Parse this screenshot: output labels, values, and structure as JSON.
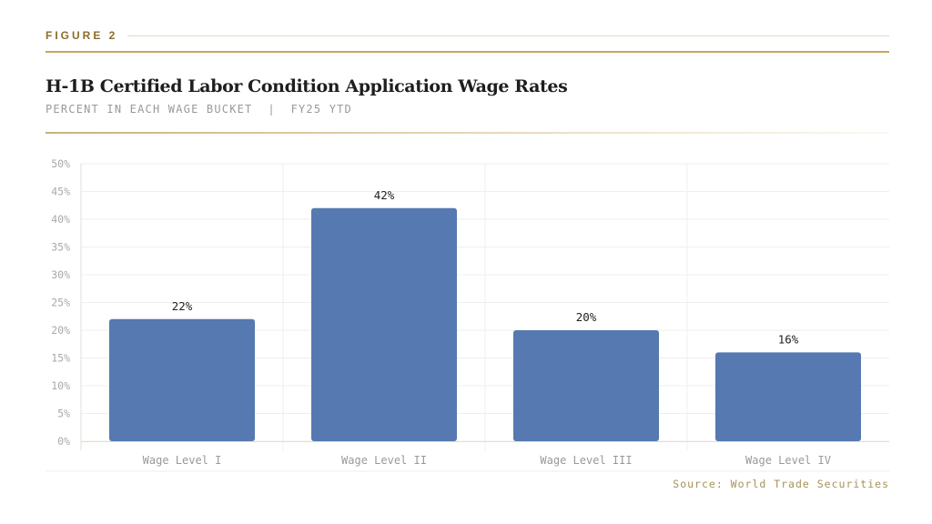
{
  "header": {
    "figure_label": "FIGURE 2",
    "title": "H-1B Certified Labor Condition Application Wage Rates",
    "subtitle": "PERCENT IN EACH WAGE BUCKET  |  FY25 YTD"
  },
  "source": "Source: World Trade Securities",
  "colors": {
    "bar": "#5579b0",
    "accent": "#c4a65e"
  },
  "chart_data": {
    "type": "bar",
    "title": "H-1B Certified Labor Condition Application Wage Rates",
    "subtitle": "PERCENT IN EACH WAGE BUCKET  |  FY25 YTD",
    "categories": [
      "Wage Level I",
      "Wage Level II",
      "Wage Level III",
      "Wage Level IV"
    ],
    "values": [
      22,
      42,
      20,
      16
    ],
    "data_labels": [
      "22%",
      "42%",
      "20%",
      "16%"
    ],
    "xlabel": "",
    "ylabel": "",
    "ylim": [
      0,
      50
    ],
    "yticks": [
      0,
      5,
      10,
      15,
      20,
      25,
      30,
      35,
      40,
      45,
      50
    ],
    "ytick_labels": [
      "0%",
      "5%",
      "10%",
      "15%",
      "20%",
      "25%",
      "30%",
      "35%",
      "40%",
      "45%",
      "50%"
    ],
    "grid": true,
    "legend": "none"
  }
}
